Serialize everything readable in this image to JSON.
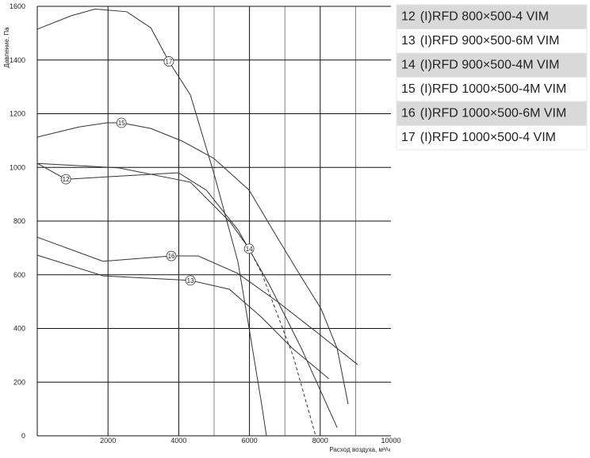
{
  "chart_data": {
    "type": "line",
    "y_label": "Давление, Па",
    "x_label": "Расход воздуха, м³/ч",
    "xlim": [
      0,
      10000
    ],
    "ylim": [
      0,
      1600
    ],
    "xticks": [
      2000,
      4000,
      6000,
      8000,
      10000
    ],
    "xgrid_minor": [
      5000,
      7000,
      9000
    ],
    "yticks": [
      0,
      200,
      400,
      600,
      800,
      1000,
      1200,
      1400,
      1600
    ],
    "grid": true,
    "color": "#333333",
    "series": [
      {
        "id": "12",
        "model": "(I)RFD 800×500-4 VIM",
        "x": [
          0,
          810,
          3990,
          4780,
          5670,
          6570,
          7470,
          8480
        ],
        "values": [
          1015,
          956,
          980,
          915,
          768,
          561,
          325,
          30
        ]
      },
      {
        "id": "13",
        "model": "(I)RFD 900×500-6M VIM",
        "x": [
          0,
          1860,
          4330,
          5430,
          6330,
          7220,
          8240
        ],
        "values": [
          673,
          596,
          579,
          546,
          443,
          325,
          213
        ]
      },
      {
        "id": "14",
        "model": "(I)RFD 900×500-4M VIM",
        "x": [
          0,
          2310,
          4330,
          5450,
          5990,
          6350,
          7240,
          7870
        ],
        "values": [
          1015,
          998,
          945,
          797,
          697,
          605,
          295,
          0
        ],
        "dash_after": 4
      },
      {
        "id": "15",
        "model": "(I)RFD 1000×500-4M VIM",
        "x": [
          0,
          1190,
          1970,
          2380,
          3210,
          4100,
          5000,
          5990,
          6790,
          7470,
          8030,
          8480,
          8790
        ],
        "values": [
          1113,
          1151,
          1166,
          1166,
          1145,
          1098,
          1033,
          915,
          738,
          590,
          472,
          325,
          118
        ]
      },
      {
        "id": "16",
        "model": "(I)RFD 1000×500-6M VIM",
        "x": [
          0,
          1860,
          3790,
          4550,
          5670,
          6790,
          7910,
          9060
        ],
        "values": [
          740,
          650,
          670,
          670,
          605,
          500,
          385,
          265
        ]
      },
      {
        "id": "17",
        "model": "(I)RFD 1000×500-4 VIM",
        "x": [
          0,
          960,
          1640,
          2530,
          3210,
          3720,
          4330,
          5000,
          5670,
          6010,
          6340,
          6480
        ],
        "values": [
          1515,
          1565,
          1590,
          1580,
          1520,
          1395,
          1270,
          975,
          650,
          385,
          120,
          0
        ]
      }
    ]
  }
}
